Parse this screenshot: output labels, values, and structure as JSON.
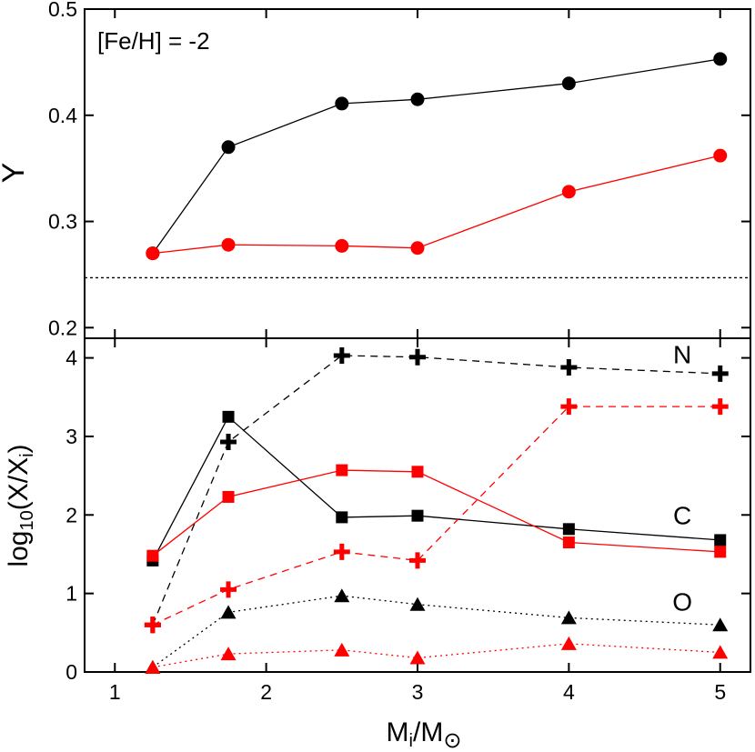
{
  "chart_data": [
    {
      "type": "line",
      "panel": "top",
      "annotation": "[Fe/H] = -2",
      "ylabel": "Y",
      "xlabel": "",
      "xlim": [
        0.8,
        5.2
      ],
      "ylim": [
        0.19,
        0.5
      ],
      "yticks": [
        0.2,
        0.3,
        0.4,
        0.5
      ],
      "ytick_labels": [
        "0.2",
        "0.3",
        "0.4",
        "0.5"
      ],
      "reference_line": 0.247,
      "grid": false,
      "series": [
        {
          "color": "#000000",
          "marker": "circle",
          "line": "solid",
          "x": [
            1.25,
            1.75,
            2.5,
            3.0,
            4.0,
            5.0
          ],
          "y": [
            0.27,
            0.37,
            0.411,
            0.415,
            0.43,
            0.453
          ]
        },
        {
          "color": "#ff0000",
          "marker": "circle",
          "line": "solid",
          "x": [
            1.25,
            1.75,
            2.5,
            3.0,
            4.0,
            5.0
          ],
          "y": [
            0.27,
            0.278,
            0.277,
            0.275,
            0.328,
            0.362
          ]
        }
      ]
    },
    {
      "type": "line",
      "panel": "bottom",
      "xlabel_main": "M",
      "xlabel_sub1": "i",
      "xlabel_mid": "/M",
      "xlabel_sun": "⊙",
      "ylabel_main": "log",
      "ylabel_base": "10",
      "ylabel_mid": "(X/X",
      "ylabel_sub": "i",
      "ylabel_end": ")",
      "xlim": [
        0.8,
        5.2
      ],
      "ylim": [
        0,
        4.25
      ],
      "xticks": [
        1,
        2,
        3,
        4,
        5
      ],
      "xtick_labels": [
        "1",
        "2",
        "3",
        "4",
        "5"
      ],
      "yticks": [
        0,
        1,
        2,
        3,
        4
      ],
      "ytick_labels": [
        "0",
        "1",
        "2",
        "3",
        "4"
      ],
      "labels": [
        {
          "text": "N",
          "x": 4.75,
          "y": 4.05
        },
        {
          "text": "C",
          "x": 4.75,
          "y": 2.0
        },
        {
          "text": "O",
          "x": 4.75,
          "y": 0.9
        }
      ],
      "grid": false,
      "series": [
        {
          "element": "C",
          "color": "#000000",
          "marker": "square",
          "line": "solid",
          "x": [
            1.25,
            1.75,
            2.5,
            3.0,
            4.0,
            5.0
          ],
          "y": [
            1.42,
            3.25,
            1.97,
            1.99,
            1.82,
            1.68
          ]
        },
        {
          "element": "C",
          "color": "#ff0000",
          "marker": "square",
          "line": "solid",
          "x": [
            1.25,
            1.75,
            2.5,
            3.0,
            4.0,
            5.0
          ],
          "y": [
            1.48,
            2.23,
            2.57,
            2.55,
            1.65,
            1.53
          ]
        },
        {
          "element": "N",
          "color": "#000000",
          "marker": "plus",
          "line": "dashed",
          "x": [
            1.25,
            1.75,
            2.5,
            3.0,
            4.0,
            5.0
          ],
          "y": [
            0.6,
            2.93,
            4.03,
            4.01,
            3.88,
            3.8
          ]
        },
        {
          "element": "N",
          "color": "#ff0000",
          "marker": "plus",
          "line": "dashed",
          "x": [
            1.25,
            1.75,
            2.5,
            3.0,
            4.0,
            5.0
          ],
          "y": [
            0.6,
            1.05,
            1.53,
            1.42,
            3.38,
            3.38
          ]
        },
        {
          "element": "O",
          "color": "#000000",
          "marker": "triangle",
          "line": "dotted",
          "x": [
            1.25,
            1.75,
            2.5,
            3.0,
            4.0,
            5.0
          ],
          "y": [
            0.06,
            0.76,
            0.97,
            0.86,
            0.69,
            0.6
          ]
        },
        {
          "element": "O",
          "color": "#ff0000",
          "marker": "triangle",
          "line": "dotted",
          "x": [
            1.25,
            1.75,
            2.5,
            3.0,
            4.0,
            5.0
          ],
          "y": [
            0.06,
            0.23,
            0.28,
            0.18,
            0.36,
            0.25
          ]
        }
      ]
    }
  ]
}
